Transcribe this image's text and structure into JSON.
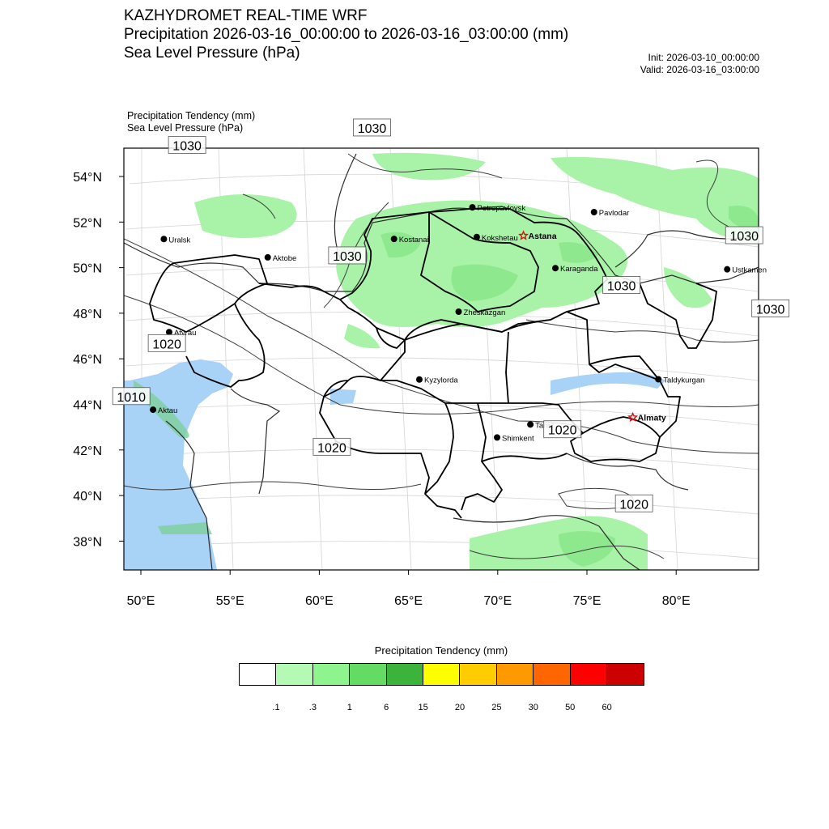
{
  "header": {
    "title_line1": "KAZHYDROMET REAL-TIME WRF",
    "title_line2": "Precipitation 2026-03-16_00:00:00 to 2026-03-16_03:00:00 (mm)",
    "title_line3": "Sea Level Pressure  (hPa)",
    "init": "Init: 2026-03-10_00:00:00",
    "valid": "Valid: 2026-03-16_03:00:00",
    "field1": "Precipitation Tendency   (mm)",
    "field2": "Sea Level Pressure   (hPa)"
  },
  "map": {
    "lat_labels": [
      "54°N",
      "52°N",
      "50°N",
      "48°N",
      "46°N",
      "44°N",
      "42°N",
      "40°N",
      "38°N"
    ],
    "lon_labels": [
      "50°E",
      "55°E",
      "60°E",
      "65°E",
      "70°E",
      "75°E",
      "80°E"
    ],
    "cities": [
      {
        "name": "Petropavlovsk",
        "lon": 68.6,
        "lat": 52.4,
        "capital": false,
        "bold": false
      },
      {
        "name": "Kostanai",
        "lon": 64.2,
        "lat": 51.0,
        "capital": false,
        "bold": false
      },
      {
        "name": "Kokshetau",
        "lon": 68.8,
        "lat": 51.1,
        "capital": false,
        "bold": false
      },
      {
        "name": "Pavlodar",
        "lon": 75.4,
        "lat": 52.3,
        "capital": false,
        "bold": false
      },
      {
        "name": "Uralsk",
        "lon": 51.4,
        "lat": 51.2,
        "capital": false,
        "bold": false
      },
      {
        "name": "Aktobe",
        "lon": 57.2,
        "lat": 50.3,
        "capital": false,
        "bold": false
      },
      {
        "name": "Astana",
        "lon": 71.4,
        "lat": 51.2,
        "capital": true,
        "bold": true
      },
      {
        "name": "Ustkamen",
        "lon": 82.6,
        "lat": 49.9,
        "capital": false,
        "bold": false
      },
      {
        "name": "Karaganda",
        "lon": 73.1,
        "lat": 49.8,
        "capital": false,
        "bold": false
      },
      {
        "name": "Atyrau",
        "lon": 51.9,
        "lat": 47.1,
        "capital": false,
        "bold": false
      },
      {
        "name": "Zheskazgan",
        "lon": 67.7,
        "lat": 47.8,
        "capital": false,
        "bold": false
      },
      {
        "name": "Taldykurgan",
        "lon": 78.4,
        "lat": 45.0,
        "capital": false,
        "bold": false
      },
      {
        "name": "Aktau",
        "lon": 51.2,
        "lat": 43.7,
        "capital": false,
        "bold": false
      },
      {
        "name": "Kyzylorda",
        "lon": 65.5,
        "lat": 44.8,
        "capital": false,
        "bold": false
      },
      {
        "name": "Almaty",
        "lon": 76.9,
        "lat": 43.3,
        "capital": true,
        "bold": true
      },
      {
        "name": "Taraz",
        "lon": 71.4,
        "lat": 42.9,
        "capital": false,
        "bold": false
      },
      {
        "name": "Shimkent",
        "lon": 69.6,
        "lat": 42.3,
        "capital": false,
        "bold": false
      }
    ],
    "isobar_labels": [
      {
        "text": "1030",
        "lon": 52.5,
        "lat": 55.3
      },
      {
        "text": "1030",
        "lon": 63.0,
        "lat": 55.9
      },
      {
        "text": "1030",
        "lon": 61.6,
        "lat": 50.3
      },
      {
        "text": "1030",
        "lon": 83.7,
        "lat": 51.4
      },
      {
        "text": "1030",
        "lon": 76.7,
        "lat": 49.1
      },
      {
        "text": "1030",
        "lon": 84.8,
        "lat": 48.2
      },
      {
        "text": "1020",
        "lon": 51.8,
        "lat": 46.6
      },
      {
        "text": "1010",
        "lon": 50.0,
        "lat": 44.3
      },
      {
        "text": "1020",
        "lon": 60.8,
        "lat": 41.9
      },
      {
        "text": "1020",
        "lon": 73.1,
        "lat": 42.7
      },
      {
        "text": "1020",
        "lon": 76.7,
        "lat": 39.5
      }
    ]
  },
  "colorbar": {
    "title": "Precipitation Tendency (mm)",
    "colors": [
      "#ffffff",
      "#b4fab4",
      "#8ef58e",
      "#64dc64",
      "#3cb43c",
      "#ffff00",
      "#ffcc00",
      "#ff9900",
      "#ff6600",
      "#ff0000",
      "#cc0000"
    ],
    "ticks": [
      ".1",
      ".3",
      "1",
      "6",
      "15",
      "20",
      "25",
      "30",
      "50",
      "60"
    ]
  }
}
